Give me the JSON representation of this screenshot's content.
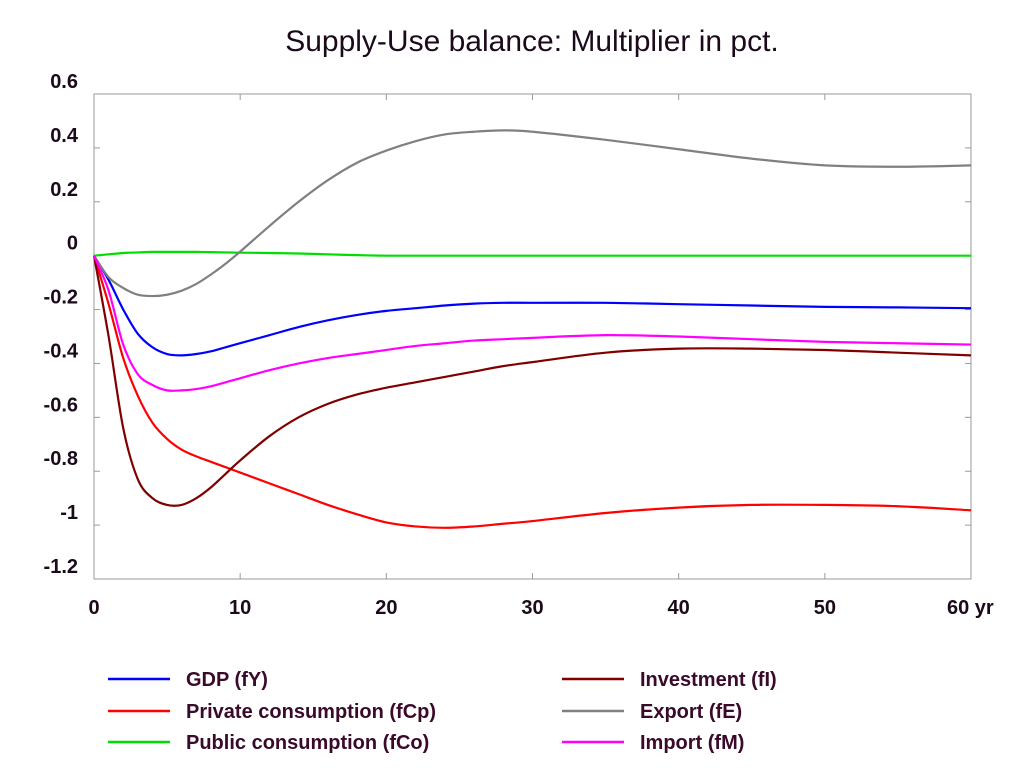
{
  "chart_data": {
    "type": "line",
    "title": "Supply-Use balance: Multiplier in pct.",
    "xlabel": "",
    "ylabel": "",
    "x_unit_label": "yr",
    "xlim": [
      0,
      60
    ],
    "ylim": [
      -1.2,
      0.6
    ],
    "x_ticks": [
      0,
      10,
      20,
      30,
      40,
      50,
      60
    ],
    "x_tick_labels": [
      "0",
      "10",
      "20",
      "30",
      "40",
      "50",
      "60 yr"
    ],
    "y_ticks": [
      -1.2,
      -1,
      -0.8,
      -0.6,
      -0.4,
      -0.2,
      0,
      0.2,
      0.4,
      0.6
    ],
    "y_tick_labels": [
      "-1.2",
      "-1",
      "-0.8",
      "-0.6",
      "-0.4",
      "-0.2",
      "0",
      "0.2",
      "0.4",
      "0.6"
    ],
    "grid": false,
    "legend_position": "bottom",
    "x": [
      0,
      1,
      2,
      3,
      4,
      5,
      6,
      7,
      8,
      9,
      10,
      12,
      14,
      16,
      18,
      20,
      22,
      24,
      26,
      28,
      30,
      35,
      40,
      45,
      50,
      55,
      60
    ],
    "series": [
      {
        "name": "GDP (fY)",
        "color": "#0000ff",
        "values": [
          0,
          -0.09,
          -0.2,
          -0.29,
          -0.34,
          -0.365,
          -0.37,
          -0.365,
          -0.355,
          -0.34,
          -0.325,
          -0.295,
          -0.265,
          -0.24,
          -0.22,
          -0.205,
          -0.195,
          -0.185,
          -0.178,
          -0.175,
          -0.175,
          -0.175,
          -0.18,
          -0.185,
          -0.19,
          -0.192,
          -0.195
        ]
      },
      {
        "name": "Private consumption (fCp)",
        "color": "#ff0000",
        "values": [
          0,
          -0.18,
          -0.38,
          -0.52,
          -0.62,
          -0.68,
          -0.72,
          -0.745,
          -0.765,
          -0.785,
          -0.805,
          -0.845,
          -0.885,
          -0.925,
          -0.96,
          -0.99,
          -1.005,
          -1.01,
          -1.005,
          -0.995,
          -0.985,
          -0.955,
          -0.935,
          -0.925,
          -0.925,
          -0.93,
          -0.945
        ]
      },
      {
        "name": "Public consumption (fCo)",
        "color": "#00dd00",
        "values": [
          0,
          0.005,
          0.01,
          0.012,
          0.014,
          0.014,
          0.014,
          0.014,
          0.013,
          0.012,
          0.011,
          0.01,
          0.008,
          0.005,
          0.002,
          0,
          0,
          0,
          0,
          0,
          0,
          0,
          0,
          0,
          0,
          0,
          0
        ]
      },
      {
        "name": "Investment (fI)",
        "color": "#800000",
        "values": [
          0,
          -0.3,
          -0.64,
          -0.83,
          -0.9,
          -0.925,
          -0.925,
          -0.9,
          -0.86,
          -0.81,
          -0.76,
          -0.67,
          -0.6,
          -0.55,
          -0.515,
          -0.49,
          -0.47,
          -0.45,
          -0.43,
          -0.41,
          -0.395,
          -0.36,
          -0.345,
          -0.345,
          -0.35,
          -0.36,
          -0.37
        ]
      },
      {
        "name": "Export (fE)",
        "color": "#808080",
        "values": [
          0,
          -0.08,
          -0.12,
          -0.145,
          -0.15,
          -0.145,
          -0.13,
          -0.105,
          -0.07,
          -0.03,
          0.015,
          0.11,
          0.2,
          0.28,
          0.345,
          0.39,
          0.425,
          0.45,
          0.46,
          0.465,
          0.46,
          0.43,
          0.395,
          0.36,
          0.335,
          0.33,
          0.335
        ]
      },
      {
        "name": "Import (fM)",
        "color": "#ff00ff",
        "values": [
          0,
          -0.13,
          -0.33,
          -0.44,
          -0.48,
          -0.5,
          -0.5,
          -0.495,
          -0.485,
          -0.47,
          -0.455,
          -0.425,
          -0.4,
          -0.38,
          -0.365,
          -0.35,
          -0.335,
          -0.325,
          -0.315,
          -0.31,
          -0.305,
          -0.295,
          -0.3,
          -0.31,
          -0.32,
          -0.325,
          -0.33
        ]
      }
    ]
  }
}
